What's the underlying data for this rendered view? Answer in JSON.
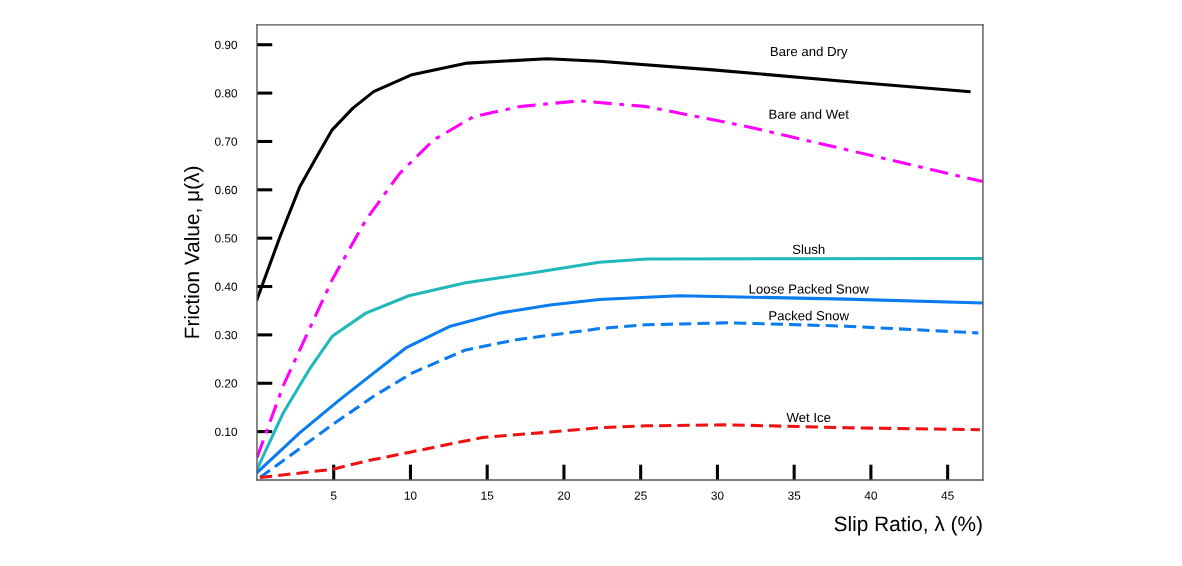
{
  "chart_data": {
    "type": "line",
    "xlabel": "Slip Ratio, λ (%)",
    "ylabel": "Friction Value, μ(λ)",
    "xlim": [
      0,
      47.3
    ],
    "ylim": [
      0,
      0.941
    ],
    "xticks": [
      5,
      10,
      15,
      20,
      25,
      30,
      35,
      40,
      45
    ],
    "yticks": [
      {
        "value": 0.1,
        "label": "0.10"
      },
      {
        "value": 0.2,
        "label": "0.20"
      },
      {
        "value": 0.3,
        "label": "0.30"
      },
      {
        "value": 0.4,
        "label": "0.40"
      },
      {
        "value": 0.5,
        "label": "0.50"
      },
      {
        "value": 0.6,
        "label": "0.60"
      },
      {
        "value": 0.7,
        "label": "0.70"
      },
      {
        "value": 0.8,
        "label": "0.80"
      },
      {
        "value": 0.9,
        "label": "0.90"
      }
    ],
    "grid": false,
    "legend": false,
    "marker": "none",
    "series": [
      {
        "name": "Bare and Dry",
        "color": "#000000",
        "line_style": "solid",
        "x": [
          0,
          1.5,
          2.8,
          3.9,
          4.9,
          6.25,
          7.6,
          10.1,
          13.7,
          18.9,
          22.3,
          29.7,
          38.4,
          46.4
        ],
        "values": [
          0.373,
          0.503,
          0.607,
          0.669,
          0.724,
          0.769,
          0.803,
          0.838,
          0.862,
          0.871,
          0.866,
          0.848,
          0.824,
          0.803
        ]
      },
      {
        "name": "Bare and Wet",
        "color": "#ff00ff",
        "line_style": "dashdot",
        "x": [
          0,
          1.7,
          3.4,
          4.9,
          7.1,
          9.3,
          11.5,
          14.1,
          17.1,
          21.0,
          25.4,
          31.9,
          38.4,
          47.3
        ],
        "values": [
          0.046,
          0.194,
          0.311,
          0.414,
          0.538,
          0.634,
          0.703,
          0.751,
          0.772,
          0.784,
          0.772,
          0.731,
          0.683,
          0.617
        ]
      },
      {
        "name": "Slush",
        "color": "#20b8b8",
        "line_style": "solid",
        "x": [
          0,
          1.7,
          3.4,
          4.9,
          7.1,
          9.9,
          13.6,
          17.9,
          22.3,
          25.4,
          47.3
        ],
        "values": [
          0.022,
          0.138,
          0.228,
          0.297,
          0.345,
          0.381,
          0.408,
          0.428,
          0.45,
          0.457,
          0.458
        ]
      },
      {
        "name": "Loose Packed Snow",
        "color": "#0a7cf0",
        "line_style": "solid",
        "x": [
          0,
          2.8,
          5.4,
          7.6,
          9.7,
          12.6,
          15.8,
          19.1,
          22.3,
          27.5,
          38.4,
          47.2
        ],
        "values": [
          0.015,
          0.098,
          0.166,
          0.221,
          0.273,
          0.318,
          0.345,
          0.362,
          0.373,
          0.381,
          0.374,
          0.366
        ]
      },
      {
        "name": "Packed Snow",
        "color": "#0a7cf0",
        "line_style": "dashed",
        "x": [
          0.2,
          4.9,
          7.6,
          10.1,
          13.6,
          16.9,
          22.3,
          25.4,
          30.8,
          38.4,
          47.0
        ],
        "values": [
          0.005,
          0.114,
          0.173,
          0.221,
          0.269,
          0.29,
          0.313,
          0.321,
          0.325,
          0.318,
          0.304
        ]
      },
      {
        "name": "Wet Ice",
        "color": "#ee1111",
        "line_style": "dashed",
        "x": [
          0.2,
          4.9,
          7.1,
          9.9,
          14.7,
          19.1,
          22.3,
          25.4,
          30.8,
          38.4,
          47.1
        ],
        "values": [
          0.005,
          0.022,
          0.039,
          0.057,
          0.088,
          0.099,
          0.108,
          0.112,
          0.114,
          0.108,
          0.104
        ]
      }
    ]
  }
}
